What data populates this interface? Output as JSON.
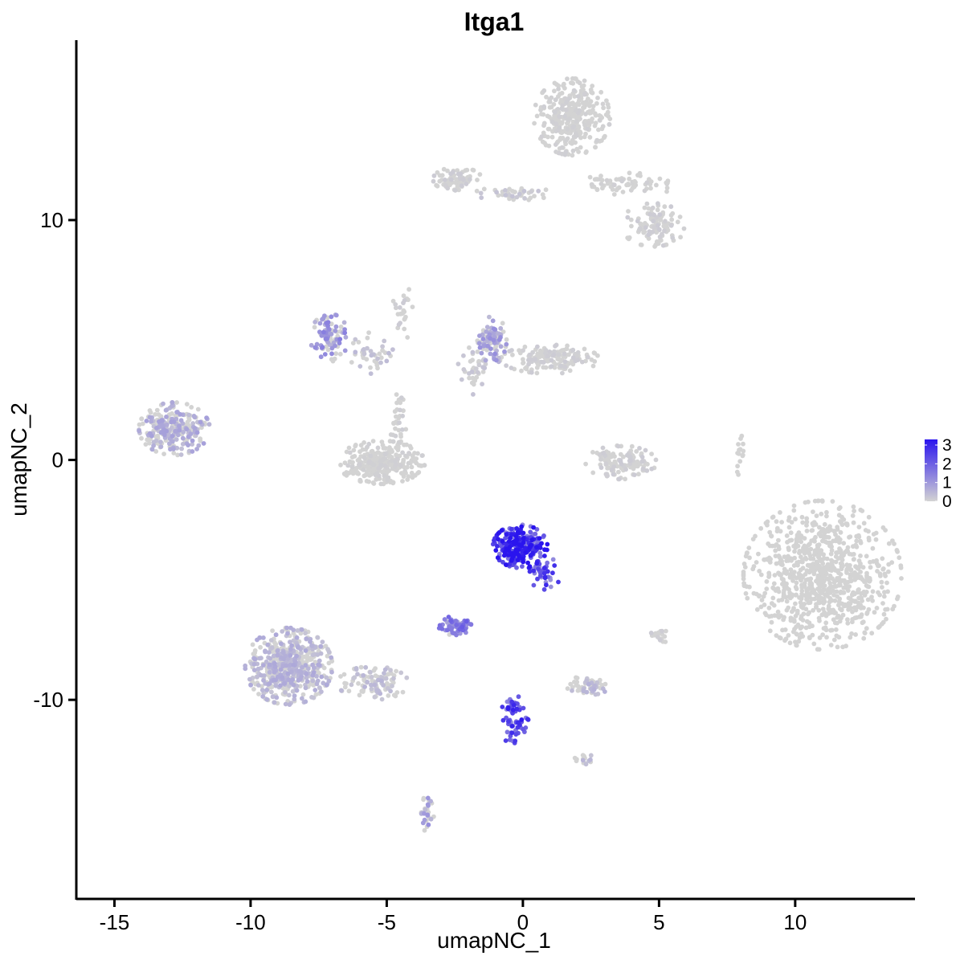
{
  "chart_data": {
    "type": "scatter",
    "title": "Itga1",
    "xlabel": "umapNC_1",
    "ylabel": "umapNC_2",
    "xlim": [
      -16.4,
      14.4
    ],
    "ylim": [
      -18.3,
      17.5
    ],
    "xticks": [
      -15,
      -10,
      -5,
      0,
      5,
      10
    ],
    "xtick_labels": [
      "-15",
      "-10",
      "-5",
      "0",
      "5",
      "10"
    ],
    "yticks": [
      -10,
      0,
      10
    ],
    "ytick_labels": [
      "-10",
      "0",
      "10"
    ],
    "grid": false,
    "legend": {
      "position": "right",
      "type": "colorbar",
      "min": 0,
      "max": 3.3,
      "ticks": [
        0,
        1,
        2,
        3
      ],
      "tick_labels": [
        "0",
        "1",
        "2",
        "3"
      ],
      "low_color": "#d3d3d3",
      "high_color": "#2a14ee"
    },
    "clusters": [
      {
        "center": [
          11.0,
          -4.8
        ],
        "radius": [
          2.9,
          3.1
        ],
        "count": 900,
        "expr": 0.0
      },
      {
        "center": [
          1.8,
          14.3
        ],
        "radius": [
          1.4,
          1.6
        ],
        "count": 340,
        "expr": 0.05
      },
      {
        "center": [
          3.8,
          11.5
        ],
        "radius": [
          1.9,
          0.5
        ],
        "count": 70,
        "expr": 0.05
      },
      {
        "center": [
          4.8,
          9.8
        ],
        "radius": [
          1.2,
          0.9
        ],
        "count": 110,
        "expr": 0.1
      },
      {
        "center": [
          -2.4,
          11.7
        ],
        "radius": [
          0.9,
          0.5
        ],
        "count": 80,
        "expr": 0.1
      },
      {
        "center": [
          -0.2,
          11.1
        ],
        "radius": [
          1.6,
          0.3
        ],
        "count": 40,
        "expr": 0.2
      },
      {
        "center": [
          -12.8,
          1.3
        ],
        "radius": [
          1.3,
          1.1
        ],
        "count": 260,
        "expr": 0.6
      },
      {
        "center": [
          -7.1,
          5.1
        ],
        "radius": [
          0.7,
          1.0
        ],
        "count": 90,
        "expr": 1.0
      },
      {
        "center": [
          -5.7,
          4.4
        ],
        "radius": [
          1.0,
          1.1
        ],
        "count": 40,
        "expr": 0.3
      },
      {
        "center": [
          -5.2,
          -0.1
        ],
        "radius": [
          1.6,
          0.9
        ],
        "count": 300,
        "expr": 0.05
      },
      {
        "center": [
          -4.6,
          1.8
        ],
        "radius": [
          0.4,
          1.3
        ],
        "count": 30,
        "expr": 0.1
      },
      {
        "center": [
          -1.1,
          5.0
        ],
        "radius": [
          0.5,
          1.0
        ],
        "count": 80,
        "expr": 0.8
      },
      {
        "center": [
          1.0,
          4.2
        ],
        "radius": [
          1.8,
          0.6
        ],
        "count": 160,
        "expr": 0.1
      },
      {
        "center": [
          -1.8,
          3.8
        ],
        "radius": [
          0.6,
          1.2
        ],
        "count": 40,
        "expr": 0.2
      },
      {
        "center": [
          3.6,
          -0.1
        ],
        "radius": [
          1.3,
          0.7
        ],
        "count": 120,
        "expr": 0.1
      },
      {
        "center": [
          -0.1,
          -3.6
        ],
        "radius": [
          1.0,
          0.9
        ],
        "count": 230,
        "expr": 2.6
      },
      {
        "center": [
          0.8,
          -4.7
        ],
        "radius": [
          0.6,
          0.7
        ],
        "count": 40,
        "expr": 2.1
      },
      {
        "center": [
          -2.5,
          -6.9
        ],
        "radius": [
          0.6,
          0.4
        ],
        "count": 60,
        "expr": 1.5
      },
      {
        "center": [
          -0.3,
          -10.8
        ],
        "radius": [
          0.5,
          1.2
        ],
        "count": 70,
        "expr": 2.2
      },
      {
        "center": [
          -8.6,
          -8.6
        ],
        "radius": [
          1.6,
          1.6
        ],
        "count": 560,
        "expr": 0.5
      },
      {
        "center": [
          -5.5,
          -9.3
        ],
        "radius": [
          1.3,
          0.7
        ],
        "count": 110,
        "expr": 0.35
      },
      {
        "center": [
          -3.5,
          -14.7
        ],
        "radius": [
          0.3,
          0.8
        ],
        "count": 30,
        "expr": 0.8
      },
      {
        "center": [
          2.4,
          -9.4
        ],
        "radius": [
          0.8,
          0.4
        ],
        "count": 60,
        "expr": 0.4
      },
      {
        "center": [
          2.3,
          -12.5
        ],
        "radius": [
          0.4,
          0.3
        ],
        "count": 15,
        "expr": 0.4
      },
      {
        "center": [
          5.0,
          -7.3
        ],
        "radius": [
          0.4,
          0.5
        ],
        "count": 20,
        "expr": 0.1
      },
      {
        "center": [
          8.0,
          0.2
        ],
        "radius": [
          0.2,
          0.9
        ],
        "count": 15,
        "expr": 0.0
      },
      {
        "center": [
          -4.4,
          6.2
        ],
        "radius": [
          0.4,
          1.5
        ],
        "count": 25,
        "expr": 0.1
      }
    ]
  }
}
